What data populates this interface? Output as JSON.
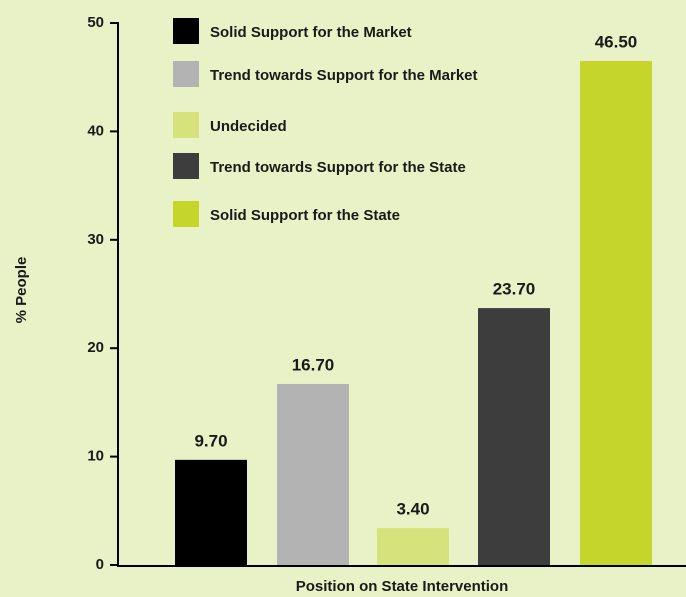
{
  "chart_data": {
    "type": "bar",
    "categories": [
      "Solid Support for the Market",
      "Trend towards Support for the Market",
      "Undecided",
      "Trend towards Support for the State",
      "Solid Support for the State"
    ],
    "values": [
      9.7,
      16.7,
      3.4,
      23.7,
      46.5
    ],
    "value_labels": [
      "9.70",
      "16.70",
      "3.40",
      "23.70",
      "46.50"
    ],
    "colors": [
      "#000000",
      "#b3b3b3",
      "#d6e27c",
      "#3d3d3d",
      "#c5d52b"
    ],
    "ylim": [
      0,
      50
    ],
    "yticks": [
      0,
      10,
      20,
      30,
      40,
      50
    ],
    "ylabel": "% People",
    "xlabel": "Position on State Intervention",
    "legend": "top-left"
  }
}
